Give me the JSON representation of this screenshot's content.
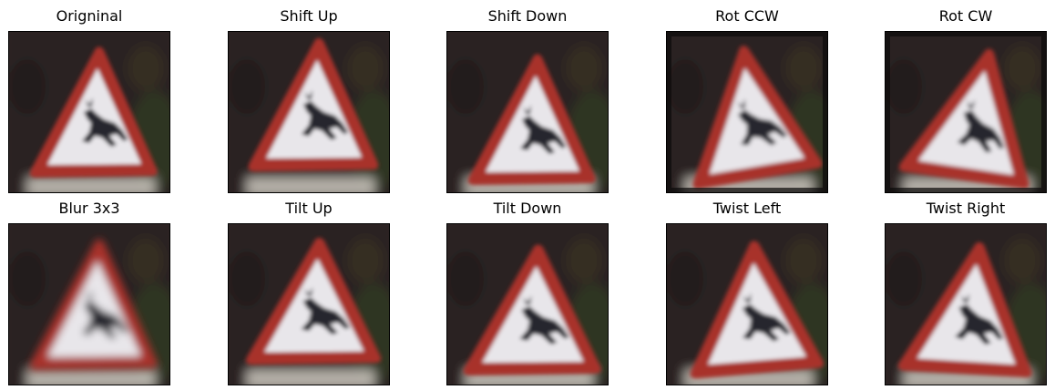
{
  "figure": {
    "panels": [
      {
        "title": "Origninal",
        "variant": "original"
      },
      {
        "title": "Shift Up",
        "variant": "shift_up"
      },
      {
        "title": "Shift Down",
        "variant": "shift_down"
      },
      {
        "title": "Rot CCW",
        "variant": "rot_ccw"
      },
      {
        "title": "Rot CW",
        "variant": "rot_cw"
      },
      {
        "title": "Blur 3x3",
        "variant": "blur"
      },
      {
        "title": "Tilt Up",
        "variant": "tilt_up"
      },
      {
        "title": "Tilt Down",
        "variant": "tilt_down"
      },
      {
        "title": "Twist Left",
        "variant": "twist_left"
      },
      {
        "title": "Twist Right",
        "variant": "twist_right"
      }
    ],
    "colors": {
      "background_dark": "#2a2320",
      "foliage": "#2f3a22",
      "sign_border": "#a8312c",
      "sign_face": "#e8e6ea",
      "deer": "#27262d",
      "post": "#cfcac2"
    }
  }
}
